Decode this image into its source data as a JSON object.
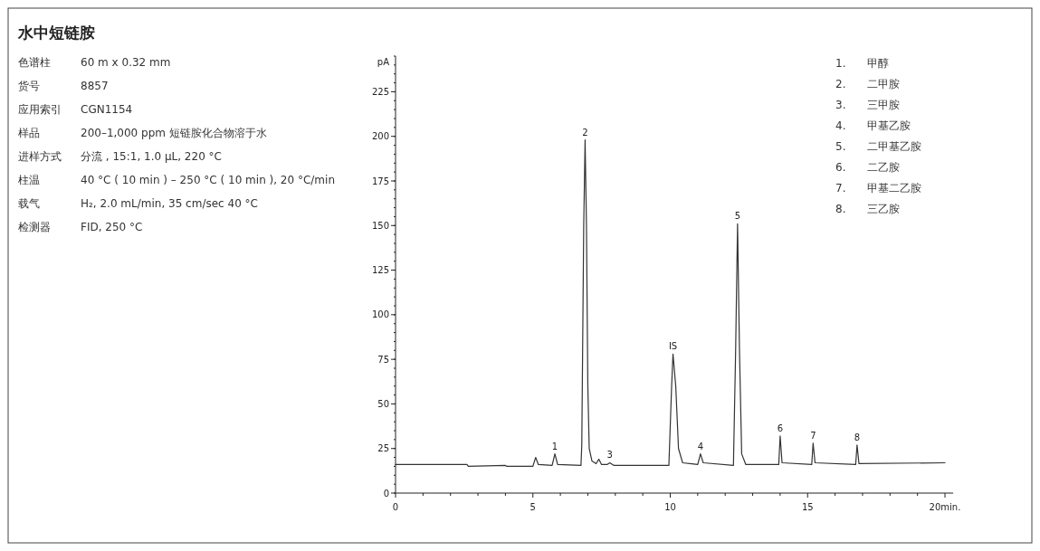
{
  "chart_data": {
    "type": "line",
    "title": "水中短链胺",
    "ylabel": "pA",
    "color": "#333333",
    "x": [
      0,
      2.6,
      2.65,
      4.0,
      4.05,
      5.0,
      5.1,
      5.2,
      5.7,
      5.8,
      5.9,
      6.75,
      6.78,
      6.85,
      6.9,
      6.95,
      7.0,
      7.05,
      7.15,
      7.3,
      7.4,
      7.5,
      7.7,
      7.8,
      7.95,
      9.95,
      10.05,
      10.1,
      10.2,
      10.3,
      10.45,
      11.0,
      11.1,
      11.2,
      12.3,
      12.38,
      12.45,
      12.52,
      12.6,
      12.75,
      13.95,
      14.0,
      14.07,
      15.15,
      15.2,
      15.27,
      16.75,
      16.8,
      16.87,
      20.0
    ],
    "values": [
      16,
      16,
      15,
      15.5,
      15,
      15,
      20,
      16,
      15.5,
      22,
      16,
      15.5,
      27,
      150,
      198,
      150,
      60,
      25,
      18,
      16.5,
      19,
      16,
      16,
      17,
      15.5,
      15.5,
      60,
      78,
      60,
      25,
      17,
      16,
      22,
      17,
      15.5,
      80,
      151,
      80,
      22,
      16,
      16,
      32,
      17,
      16,
      28,
      17,
      16,
      27,
      16.5,
      17
    ],
    "xlim": [
      0,
      20.3
    ],
    "ylim": [
      0,
      245
    ],
    "xticks": [
      0,
      {
        "value": 1,
        "label": null
      },
      {
        "value": 2,
        "label": null
      },
      {
        "value": 3,
        "label": null
      },
      {
        "value": 4,
        "label": null
      },
      5,
      {
        "value": 6,
        "label": null
      },
      {
        "value": 7,
        "label": null
      },
      {
        "value": 8,
        "label": null
      },
      {
        "value": 9,
        "label": null
      },
      10,
      {
        "value": 11,
        "label": null
      },
      {
        "value": 12,
        "label": null
      },
      {
        "value": 13,
        "label": null
      },
      {
        "value": 14,
        "label": null
      },
      15,
      {
        "value": 16,
        "label": null
      },
      {
        "value": 17,
        "label": null
      },
      {
        "value": 18,
        "label": null
      },
      {
        "value": 19,
        "label": null
      },
      {
        "value": 20,
        "label": "20min."
      }
    ],
    "yticks": [
      0,
      25,
      50,
      75,
      100,
      125,
      150,
      175,
      200,
      225
    ],
    "annotations": [
      {
        "text": "1",
        "x": 5.8,
        "y": 22
      },
      {
        "text": "2",
        "x": 6.9,
        "y": 198
      },
      {
        "text": "3",
        "x": 7.8,
        "y": 17
      },
      {
        "text": "IS",
        "x": 10.1,
        "y": 78
      },
      {
        "text": "4",
        "x": 11.1,
        "y": 22
      },
      {
        "text": "5",
        "x": 12.45,
        "y": 151
      },
      {
        "text": "6",
        "x": 14.0,
        "y": 32
      },
      {
        "text": "7",
        "x": 15.2,
        "y": 28
      },
      {
        "text": "8",
        "x": 16.8,
        "y": 27
      },
      "色谱柱",
      "60 m x 0.32 mm",
      "货号",
      "8857",
      "应用索引",
      "CGN1154",
      "样品",
      "200–1,000 ppm 短链胺化合物溶于水",
      "进样方式",
      "分流 , 15:1, 1.0 µL, 220 °C",
      "柱温",
      "40 °C ( 10 min ) – 250 °C ( 10 min ), 20 °C/min",
      "载气",
      "H₂, 2.0 mL/min, 35 cm/sec 40 °C",
      "检测器",
      "FID, 250 °C",
      "1. 甲醇",
      "2. 二甲胺",
      "3. 三甲胺",
      "4. 甲基乙胺",
      "5. 二甲基乙胺",
      "6. 二乙胺",
      "7. 甲基二乙胺",
      "8. 三乙胺"
    ]
  }
}
